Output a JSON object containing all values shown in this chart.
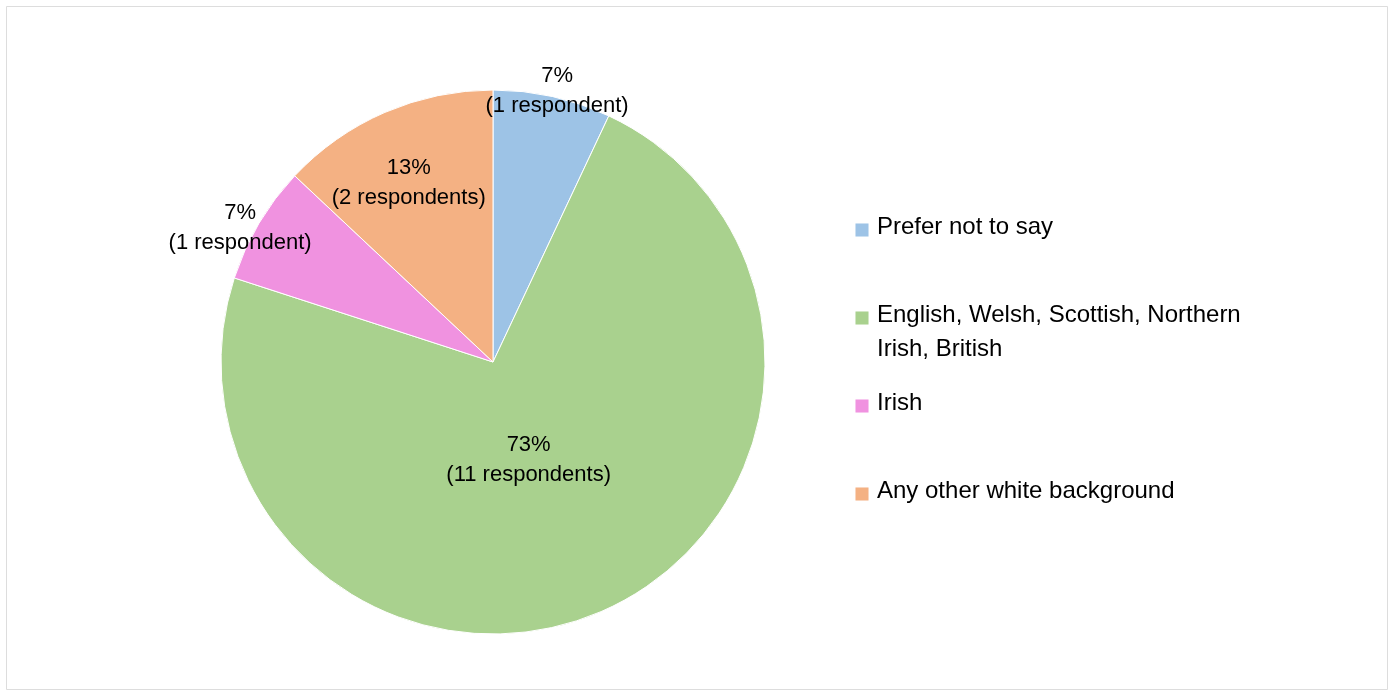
{
  "chart_data": {
    "type": "pie",
    "categories": [
      "Prefer not to say",
      "English, Welsh, Scottish, Northern Irish, British",
      "Irish",
      "Any other white background"
    ],
    "values": [
      7,
      73,
      7,
      13
    ],
    "colors": [
      "#9dc3e6",
      "#a9d18e",
      "#f092e0",
      "#f4b183"
    ],
    "value_labels": [
      "7%\n(1 respondent)",
      "73%\n(11 respondents)",
      "7%\n(1 respondent)",
      "13%\n(2 respondents)"
    ],
    "legend": "right"
  }
}
